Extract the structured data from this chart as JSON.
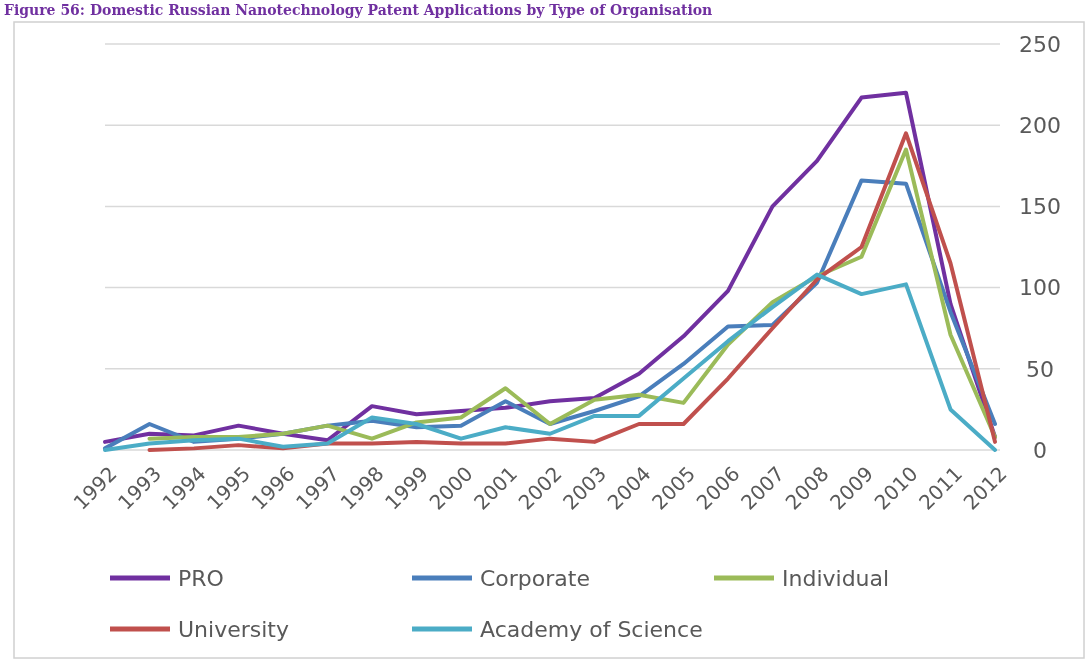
{
  "chart_data": {
    "type": "line",
    "title": "Figure 56: Domestic Russian Nanotechnology Patent Applications by Type of Organisation",
    "categories": [
      "1992",
      "1993",
      "1994",
      "1995",
      "1996",
      "1997",
      "1998",
      "1999",
      "2000",
      "2001",
      "2002",
      "2003",
      "2004",
      "2005",
      "2006",
      "2007",
      "2008",
      "2009",
      "2010",
      "2011",
      "2012"
    ],
    "series": [
      {
        "name": "PRO",
        "color": "#7030a0",
        "values": [
          5,
          10,
          9,
          15,
          10,
          6,
          27,
          22,
          24,
          26,
          30,
          32,
          47,
          70,
          98,
          150,
          178,
          217,
          220,
          90,
          8
        ]
      },
      {
        "name": "Corporate",
        "color": "#4a7ebb",
        "values": [
          1,
          16,
          5,
          7,
          10,
          15,
          18,
          14,
          15,
          30,
          16,
          24,
          33,
          53,
          76,
          77,
          103,
          166,
          164,
          85,
          16
        ]
      },
      {
        "name": "Individual",
        "color": "#9bbb59",
        "values": [
          null,
          7,
          8,
          8,
          10,
          15,
          7,
          17,
          20,
          38,
          16,
          31,
          34,
          29,
          65,
          91,
          107,
          119,
          185,
          71,
          8
        ]
      },
      {
        "name": "University",
        "color": "#c0504d",
        "values": [
          null,
          0,
          1,
          3,
          1,
          4,
          4,
          5,
          4,
          4,
          7,
          5,
          16,
          16,
          44,
          75,
          105,
          125,
          195,
          115,
          5
        ]
      },
      {
        "name": "Academy of Science",
        "color": "#4bacc6",
        "values": [
          0,
          4,
          6,
          7,
          2,
          4,
          20,
          16,
          7,
          14,
          10,
          21,
          21,
          44,
          67,
          88,
          108,
          96,
          102,
          25,
          0
        ]
      }
    ],
    "ylim": [
      0,
      250
    ],
    "yticks": [
      0,
      50,
      100,
      150,
      200,
      250
    ],
    "grid": "y",
    "legend": "bottom",
    "line_style": "solid",
    "marker": "none"
  }
}
